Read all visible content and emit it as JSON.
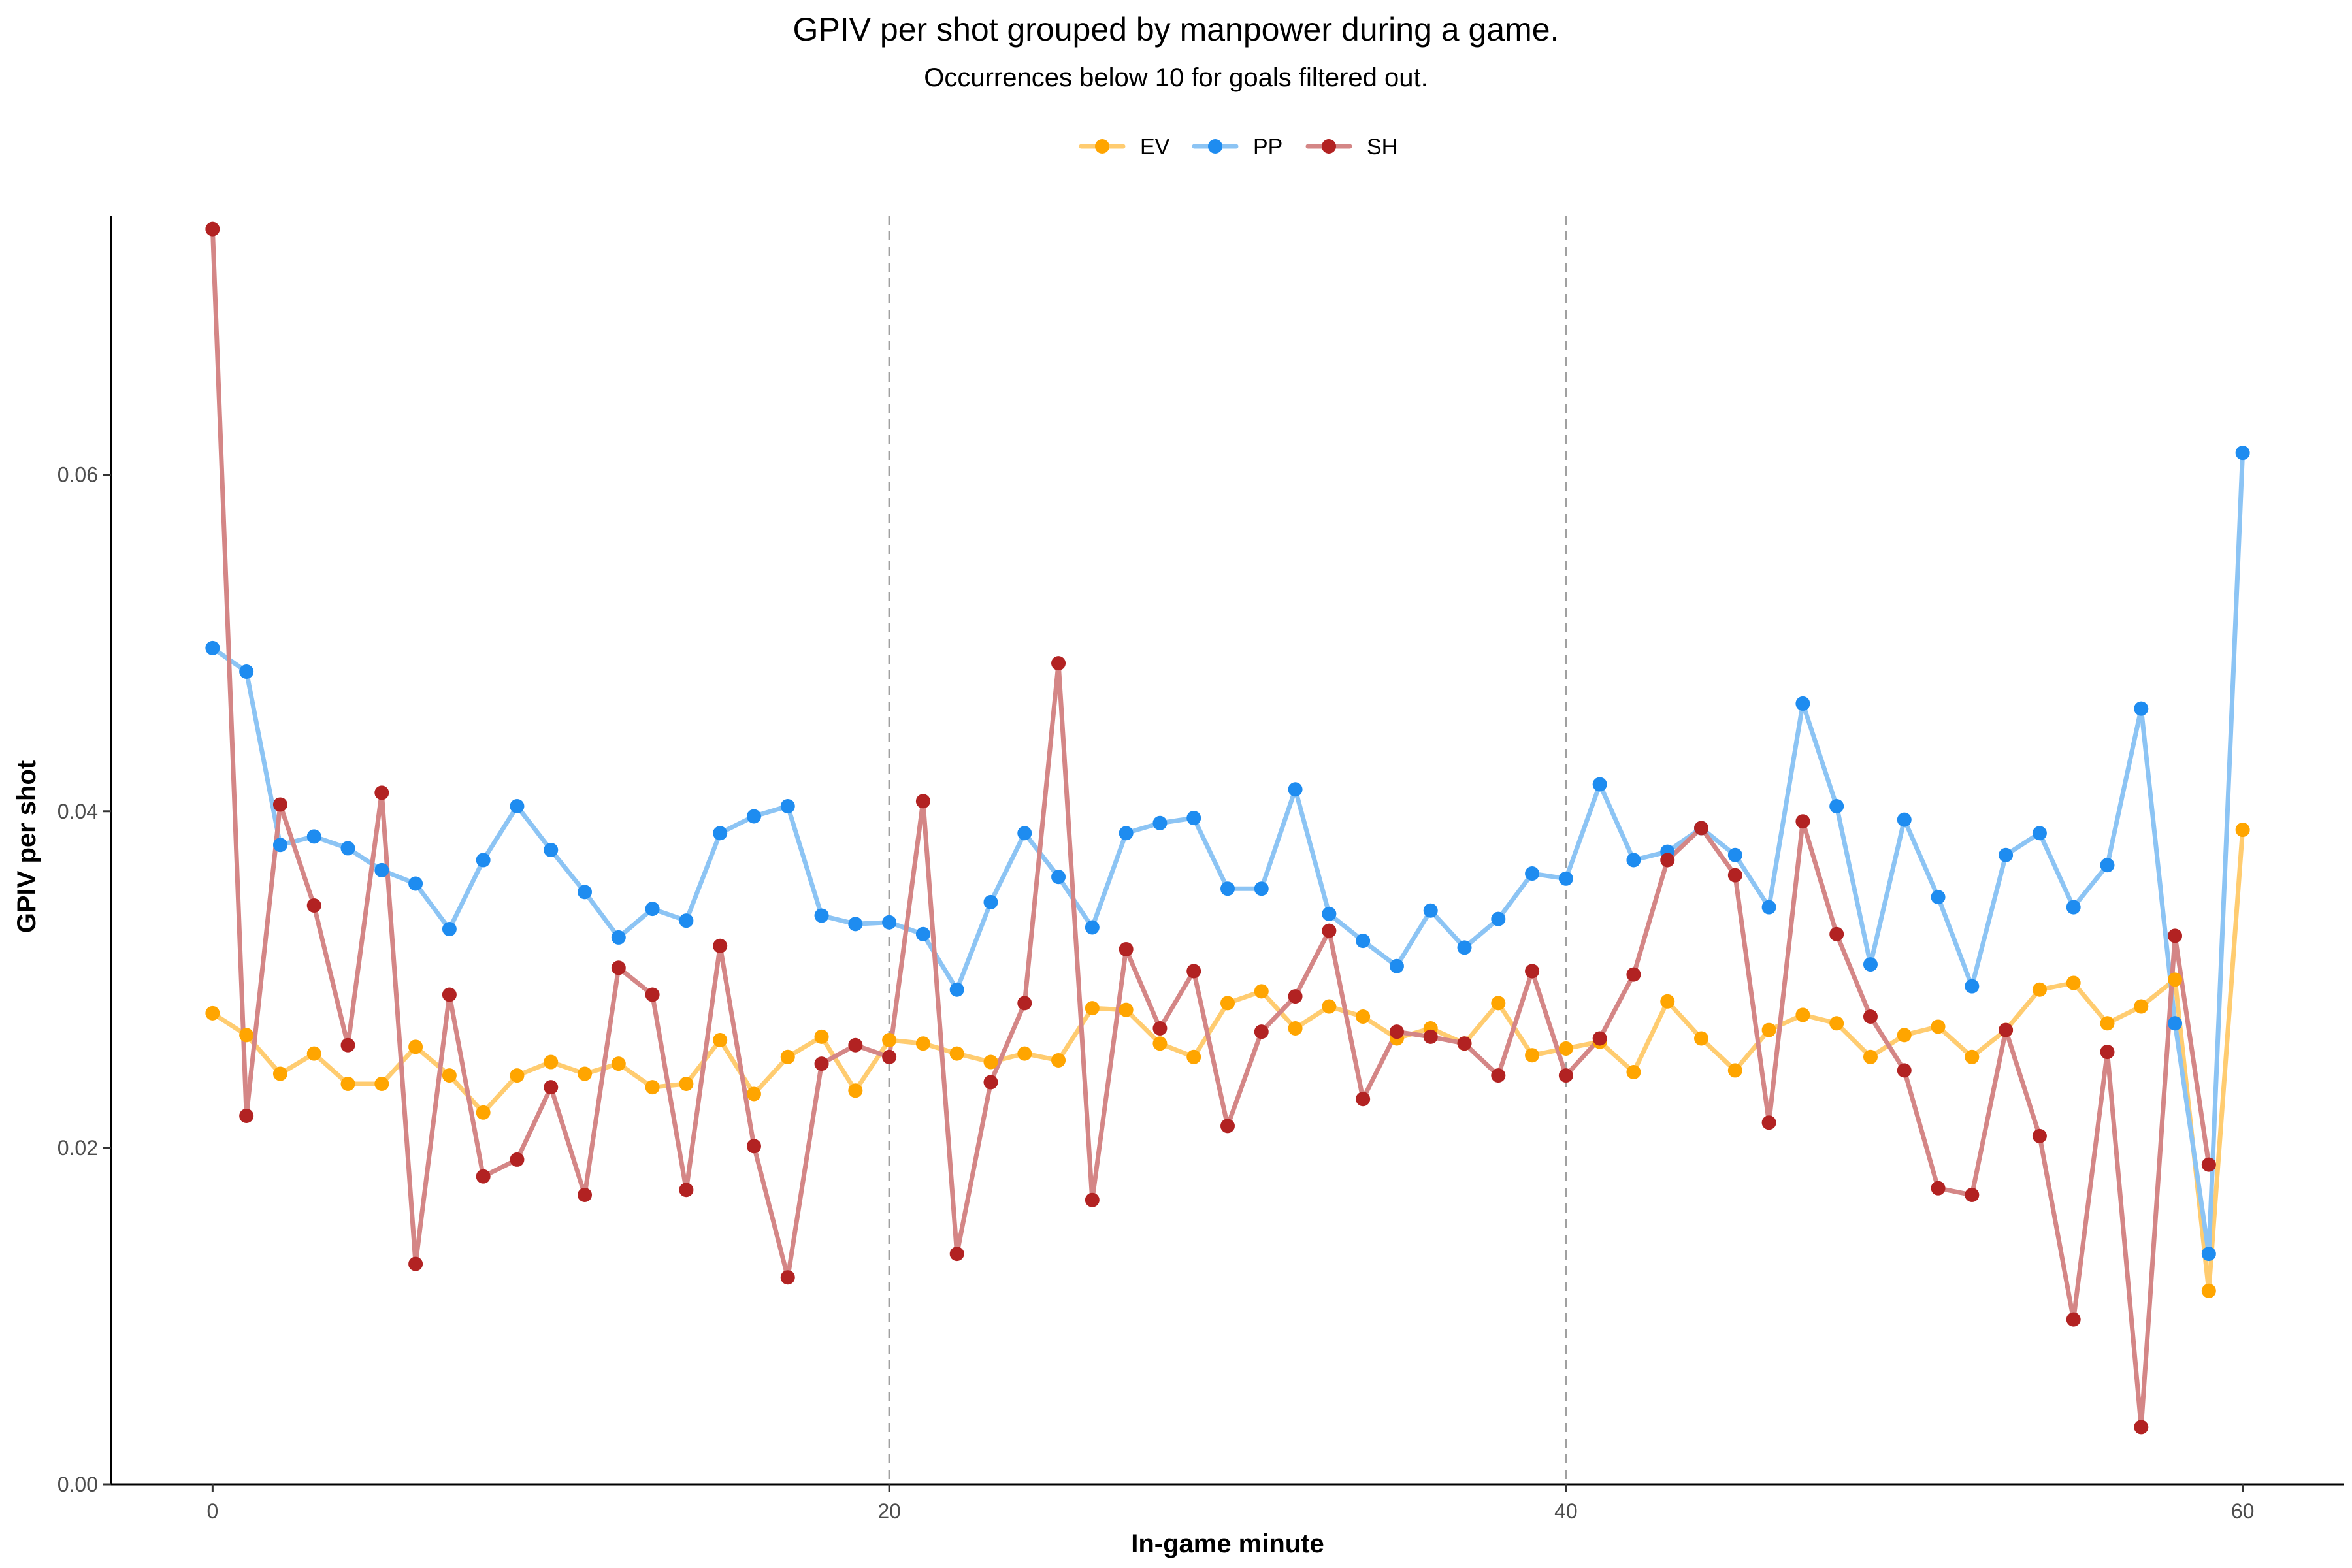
{
  "chart_data": {
    "type": "line",
    "title": "GPIV per shot grouped by manpower during a game.",
    "subtitle": "Occurrences below 10 for goals filtered out.",
    "xlabel": "In-game minute",
    "ylabel": "GPIV per shot",
    "xlim": [
      -3,
      63
    ],
    "ylim": [
      0,
      0.0754
    ],
    "xticks": [
      0,
      20,
      40,
      60
    ],
    "yticks": [
      0.0,
      0.02,
      0.04,
      0.06
    ],
    "ytick_labels": [
      "0.00",
      "0.02",
      "0.04",
      "0.06"
    ],
    "vlines": [
      20,
      40
    ],
    "grid": false,
    "legend_position": "top",
    "series": [
      {
        "name": "EV",
        "color": "#FFA500",
        "line_color": "#FFCC70",
        "x": [
          0,
          1,
          2,
          3,
          4,
          5,
          6,
          7,
          8,
          9,
          10,
          11,
          12,
          13,
          14,
          15,
          16,
          17,
          18,
          19,
          20,
          21,
          22,
          23,
          24,
          25,
          26,
          27,
          28,
          29,
          30,
          31,
          32,
          33,
          34,
          35,
          36,
          37,
          38,
          39,
          40,
          41,
          42,
          43,
          44,
          45,
          46,
          47,
          48,
          49,
          50,
          51,
          52,
          53,
          54,
          55,
          56,
          57,
          58,
          59,
          60
        ],
        "values": [
          0.028,
          0.0267,
          0.0244,
          0.0256,
          0.0238,
          0.0238,
          0.026,
          0.0243,
          0.0221,
          0.0243,
          0.0251,
          0.0244,
          0.025,
          0.0236,
          0.0238,
          0.0264,
          0.0232,
          0.0254,
          0.0266,
          0.0234,
          0.0264,
          0.0262,
          0.0256,
          0.0251,
          0.0256,
          0.0252,
          0.0283,
          0.0282,
          0.0262,
          0.0254,
          0.0286,
          0.0293,
          0.0271,
          0.0284,
          0.0278,
          0.0265,
          0.0271,
          0.0262,
          0.0286,
          0.0255,
          0.0259,
          0.0263,
          0.0245,
          0.0287,
          0.0265,
          0.0246,
          0.027,
          0.0279,
          0.0274,
          0.0254,
          0.0267,
          0.0272,
          0.0254,
          0.027,
          0.0294,
          0.0298,
          0.0274,
          0.0284,
          0.03,
          0.0115,
          0.0389
        ]
      },
      {
        "name": "PP",
        "color": "#1E8CF0",
        "line_color": "#8CC4F4",
        "x": [
          0,
          1,
          2,
          3,
          4,
          5,
          6,
          7,
          8,
          9,
          10,
          11,
          12,
          13,
          14,
          15,
          16,
          17,
          18,
          19,
          20,
          21,
          22,
          23,
          24,
          25,
          26,
          27,
          28,
          29,
          30,
          31,
          32,
          33,
          34,
          35,
          36,
          37,
          38,
          39,
          40,
          41,
          42,
          43,
          44,
          45,
          46,
          47,
          48,
          49,
          50,
          51,
          52,
          53,
          54,
          55,
          56,
          57,
          58,
          59,
          60
        ],
        "values": [
          0.0497,
          0.0483,
          0.038,
          0.0385,
          0.0378,
          0.0365,
          0.0357,
          0.033,
          0.0371,
          0.0403,
          0.0377,
          0.0352,
          0.0325,
          0.0342,
          0.0335,
          0.0387,
          0.0397,
          0.0403,
          0.0338,
          0.0333,
          0.0334,
          0.0327,
          0.0294,
          0.0346,
          0.0387,
          0.0361,
          0.0331,
          0.0387,
          0.0393,
          0.0396,
          0.0354,
          0.0354,
          0.0413,
          0.0339,
          0.0323,
          0.0308,
          0.0341,
          0.0319,
          0.0336,
          0.0363,
          0.036,
          0.0416,
          0.0371,
          0.0376,
          0.039,
          0.0374,
          0.0343,
          0.0464,
          0.0403,
          0.0309,
          0.0395,
          0.0349,
          0.0296,
          0.0374,
          0.0387,
          0.0343,
          0.0368,
          0.0461,
          0.0274,
          0.0137,
          0.0613
        ]
      },
      {
        "name": "SH",
        "color": "#B22222",
        "line_color": "#D48686",
        "x": [
          0,
          1,
          2,
          3,
          4,
          5,
          6,
          7,
          8,
          9,
          10,
          11,
          12,
          13,
          14,
          15,
          16,
          17,
          18,
          19,
          20,
          21,
          22,
          23,
          24,
          25,
          26,
          27,
          28,
          29,
          30,
          31,
          32,
          33,
          34,
          35,
          36,
          37,
          38,
          39,
          40,
          41,
          42,
          43,
          44,
          45,
          46,
          47,
          48,
          49,
          50,
          51,
          52,
          53,
          54,
          55,
          56,
          57,
          58,
          59
        ],
        "values": [
          0.0746,
          0.0219,
          0.0404,
          0.0344,
          0.0261,
          0.0411,
          0.0131,
          0.0291,
          0.0183,
          0.0193,
          0.0236,
          0.0172,
          0.0307,
          0.0291,
          0.0175,
          0.032,
          0.0201,
          0.0123,
          0.025,
          0.0261,
          0.0254,
          0.0406,
          0.0137,
          0.0239,
          0.0286,
          0.0488,
          0.0169,
          0.0318,
          0.0271,
          0.0305,
          0.0213,
          0.0269,
          0.029,
          0.0329,
          0.0229,
          0.0269,
          0.0266,
          0.0262,
          0.0243,
          0.0305,
          0.0243,
          0.0265,
          0.0303,
          0.0371,
          0.039,
          0.0362,
          0.0215,
          0.0394,
          0.0327,
          0.0278,
          0.0246,
          0.0176,
          0.0172,
          0.027,
          0.0207,
          0.0098,
          0.0257,
          0.0034,
          0.0326,
          0.019
        ]
      }
    ]
  }
}
